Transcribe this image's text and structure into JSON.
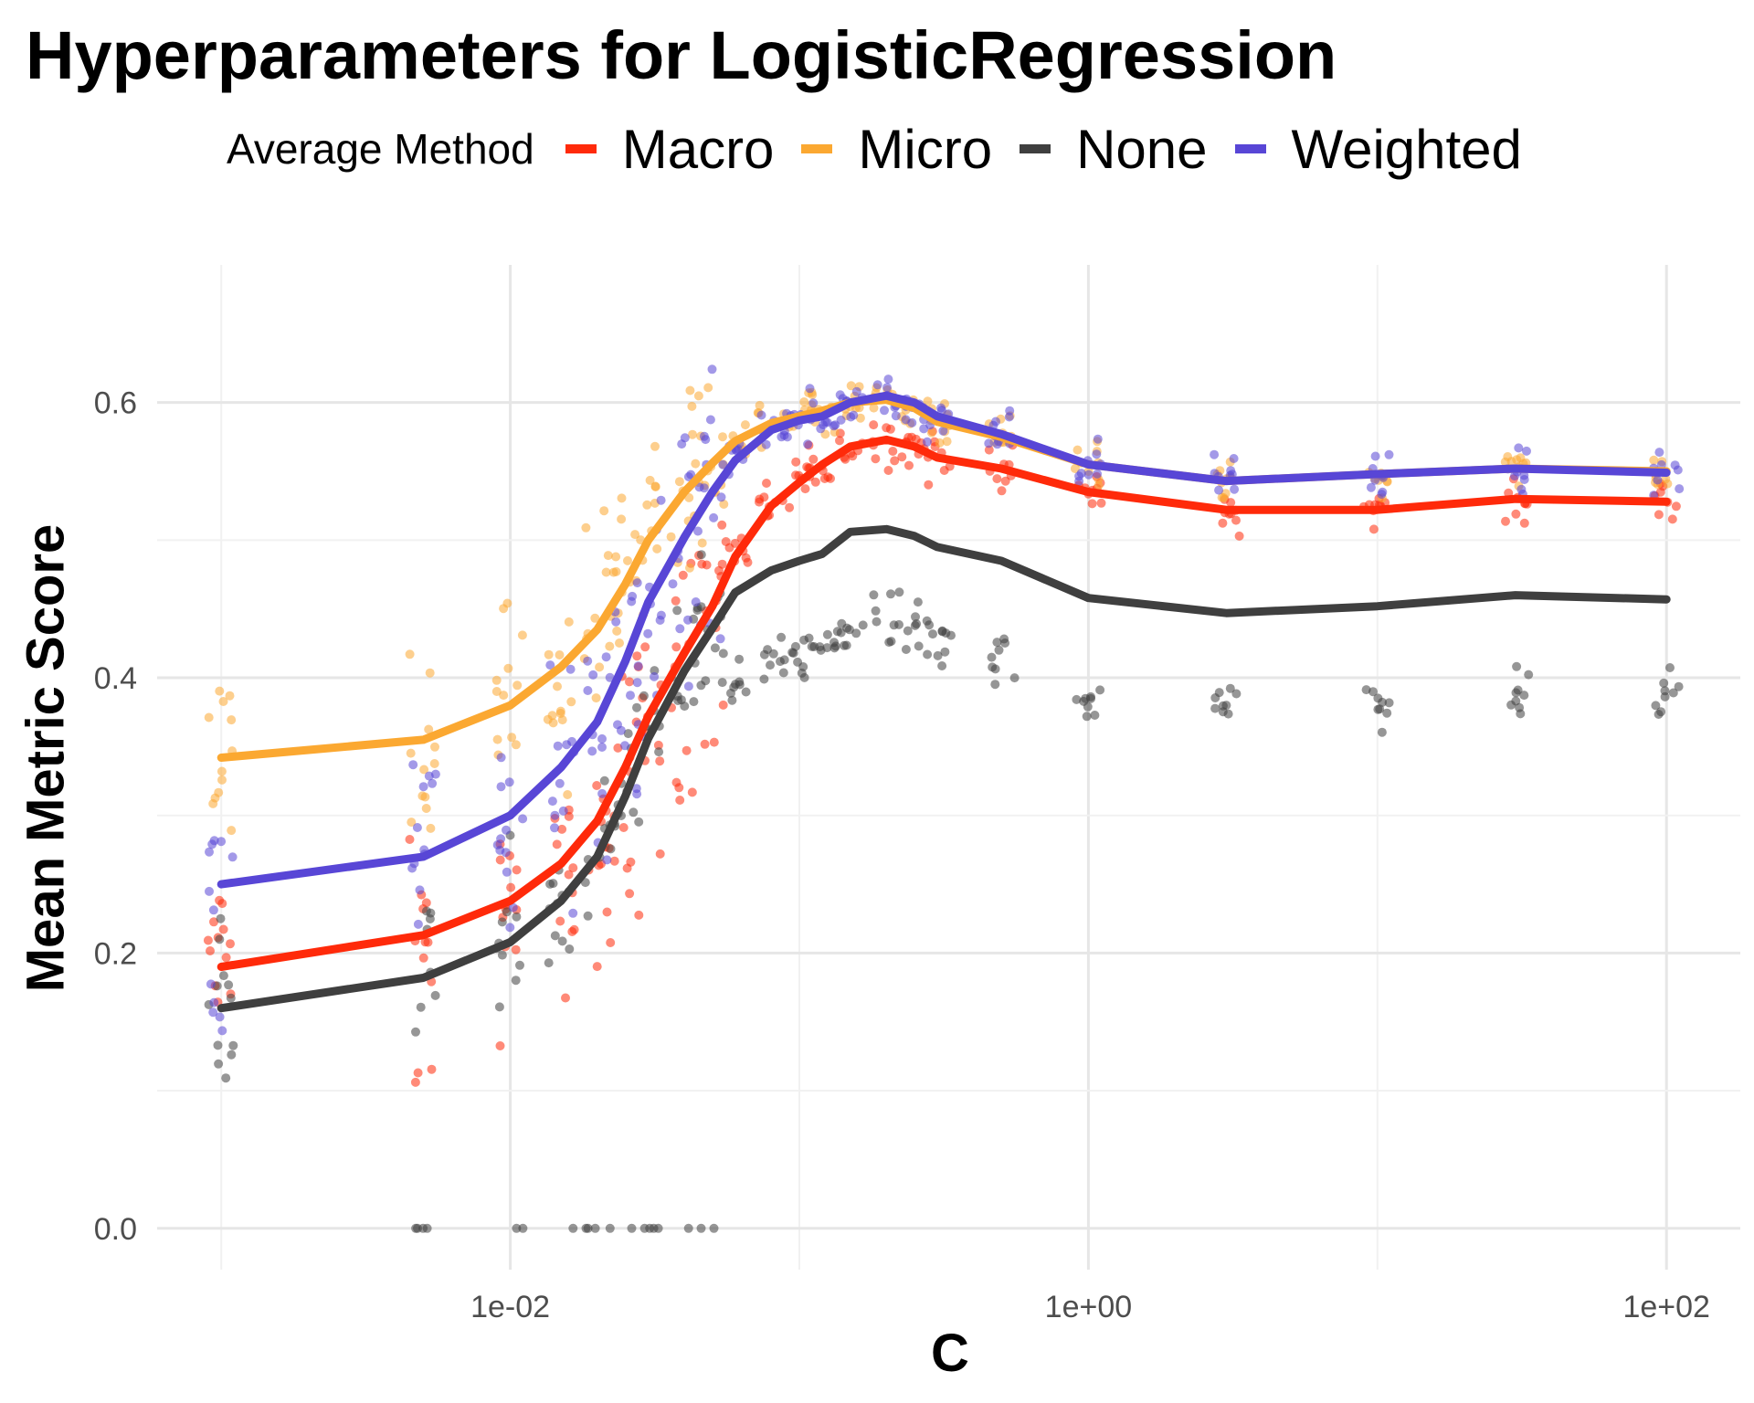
{
  "chart_data": {
    "type": "line",
    "title": "Hyperparameters for LogisticRegression",
    "xlabel": "C",
    "ylabel": "Mean Metric Score",
    "x_scale": "log10",
    "xlim": [
      0.0006,
      180
    ],
    "ylim": [
      -0.03,
      0.7
    ],
    "x_ticks": [
      0.01,
      1,
      100
    ],
    "x_tick_labels": [
      "1e-02",
      "1e+00",
      "1e+02"
    ],
    "y_ticks": [
      0.0,
      0.2,
      0.4,
      0.6
    ],
    "y_tick_labels": [
      "0.0",
      "0.2",
      "0.4",
      "0.6"
    ],
    "grid": true,
    "legend": {
      "title": "Average Method",
      "position": "top"
    },
    "x": [
      0.001,
      0.005,
      0.01,
      0.015,
      0.02,
      0.025,
      0.03,
      0.04,
      0.05,
      0.06,
      0.08,
      0.1,
      0.12,
      0.15,
      0.2,
      0.25,
      0.3,
      0.5,
      1,
      3,
      10,
      30,
      100
    ],
    "series": [
      {
        "name": "Macro",
        "color": "#FF2A0A",
        "values": [
          0.19,
          0.213,
          0.238,
          0.265,
          0.296,
          0.335,
          0.372,
          0.418,
          0.452,
          0.488,
          0.525,
          0.542,
          0.555,
          0.568,
          0.573,
          0.568,
          0.56,
          0.552,
          0.535,
          0.522,
          0.522,
          0.53,
          0.528
        ]
      },
      {
        "name": "Micro",
        "color": "#FBA831",
        "values": [
          0.342,
          0.355,
          0.38,
          0.408,
          0.435,
          0.468,
          0.5,
          0.535,
          0.556,
          0.572,
          0.585,
          0.59,
          0.594,
          0.6,
          0.602,
          0.596,
          0.586,
          0.575,
          0.555,
          0.543,
          0.548,
          0.552,
          0.55
        ]
      },
      {
        "name": "None",
        "color": "#3F3F3F",
        "values": [
          0.16,
          0.182,
          0.208,
          0.238,
          0.27,
          0.314,
          0.356,
          0.405,
          0.436,
          0.462,
          0.478,
          0.485,
          0.49,
          0.506,
          0.508,
          0.503,
          0.495,
          0.485,
          0.458,
          0.447,
          0.452,
          0.46,
          0.457
        ]
      },
      {
        "name": "Weighted",
        "color": "#5846D6",
        "values": [
          0.25,
          0.27,
          0.3,
          0.335,
          0.368,
          0.412,
          0.455,
          0.502,
          0.535,
          0.558,
          0.58,
          0.587,
          0.59,
          0.6,
          0.605,
          0.6,
          0.59,
          0.577,
          0.555,
          0.543,
          0.548,
          0.552,
          0.549
        ]
      }
    ]
  }
}
